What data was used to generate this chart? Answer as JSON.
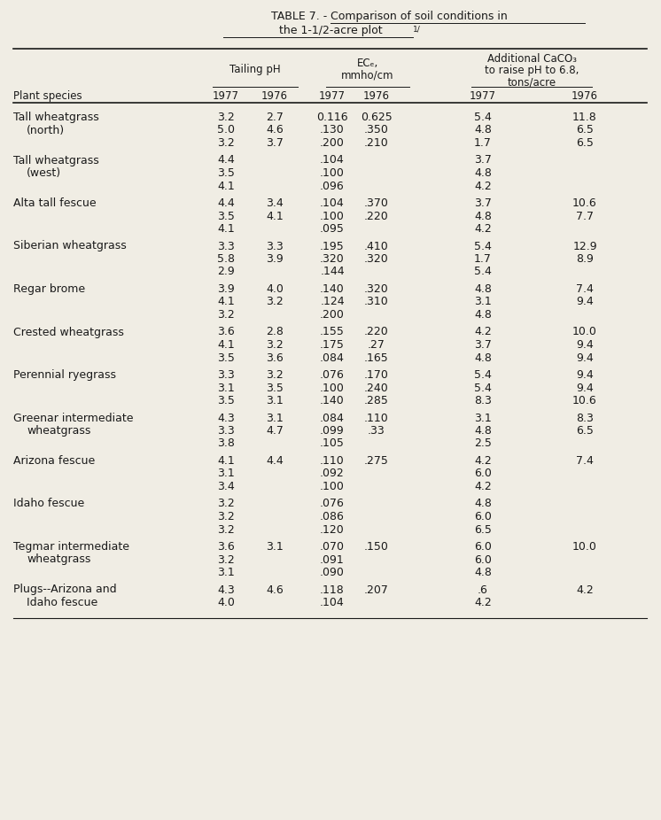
{
  "title_line1_prefix": "TABLE 7. - ",
  "title_line1_underlined": "Comparison of soil conditions in",
  "title_line2_underlined": "the 1-1/2-acre plot",
  "title_superscript": "1/",
  "bg_color": "#f0ede4",
  "text_color": "#1a1a1a",
  "font_size": 9.0,
  "col_group_labels": [
    "Tailing pH",
    "EC_e,\nmmho/cm",
    "Additional CaCO3\nto raise pH to 6.8,\ntons/acre"
  ],
  "col_years": [
    "1977",
    "1976",
    "1977",
    "1976",
    "1977",
    "1976"
  ],
  "entries": [
    {
      "label1": "Tall wheatgrass",
      "label2": "(north)",
      "rows": [
        [
          "3.2",
          "2.7",
          "0.116",
          "0.625",
          "5.4",
          "11.8"
        ],
        [
          "5.0",
          "4.6",
          ".130",
          ".350",
          "4.8",
          "6.5"
        ],
        [
          "3.2",
          "3.7",
          ".200",
          ".210",
          "1.7",
          "6.5"
        ]
      ]
    },
    {
      "label1": "Tall wheatgrass",
      "label2": "(west)",
      "rows": [
        [
          "4.4",
          "",
          ".104",
          "",
          "3.7",
          ""
        ],
        [
          "3.5",
          "",
          ".100",
          "",
          "4.8",
          ""
        ],
        [
          "4.1",
          "",
          ".096",
          "",
          "4.2",
          ""
        ]
      ]
    },
    {
      "label1": "Alta tall fescue",
      "label2": null,
      "rows": [
        [
          "4.4",
          "3.4",
          ".104",
          ".370",
          "3.7",
          "10.6"
        ],
        [
          "3.5",
          "4.1",
          ".100",
          ".220",
          "4.8",
          "7.7"
        ],
        [
          "4.1",
          "",
          ".095",
          "",
          "4.2",
          ""
        ]
      ]
    },
    {
      "label1": "Siberian wheatgrass",
      "label2": null,
      "rows": [
        [
          "3.3",
          "3.3",
          ".195",
          ".410",
          "5.4",
          "12.9"
        ],
        [
          "5.8",
          "3.9",
          ".320",
          ".320",
          "1.7",
          "8.9"
        ],
        [
          "2.9",
          "",
          ".144",
          "",
          "5.4",
          ""
        ]
      ]
    },
    {
      "label1": "Regar brome",
      "label2": null,
      "rows": [
        [
          "3.9",
          "4.0",
          ".140",
          ".320",
          "4.8",
          "7.4"
        ],
        [
          "4.1",
          "3.2",
          ".124",
          ".310",
          "3.1",
          "9.4"
        ],
        [
          "3.2",
          "",
          ".200",
          "",
          "4.8",
          ""
        ]
      ]
    },
    {
      "label1": "Crested wheatgrass",
      "label2": null,
      "rows": [
        [
          "3.6",
          "2.8",
          ".155",
          ".220",
          "4.2",
          "10.0"
        ],
        [
          "4.1",
          "3.2",
          ".175",
          ".27",
          "3.7",
          "9.4"
        ],
        [
          "3.5",
          "3.6",
          ".084",
          ".165",
          "4.8",
          "9.4"
        ]
      ]
    },
    {
      "label1": "Perennial ryegrass",
      "label2": null,
      "rows": [
        [
          "3.3",
          "3.2",
          ".076",
          ".170",
          "5.4",
          "9.4"
        ],
        [
          "3.1",
          "3.5",
          ".100",
          ".240",
          "5.4",
          "9.4"
        ],
        [
          "3.5",
          "3.1",
          ".140",
          ".285",
          "8.3",
          "10.6"
        ]
      ]
    },
    {
      "label1": "Greenar intermediate",
      "label2": "  wheatgrass",
      "rows": [
        [
          "4.3",
          "3.1",
          ".084",
          ".110",
          "3.1",
          "8.3"
        ],
        [
          "3.3",
          "4.7",
          ".099",
          ".33",
          "4.8",
          "6.5"
        ],
        [
          "3.8",
          "",
          ".105",
          "",
          "2.5",
          ""
        ]
      ]
    },
    {
      "label1": "Arizona fescue",
      "label2": null,
      "rows": [
        [
          "4.1",
          "4.4",
          ".110",
          ".275",
          "4.2",
          "7.4"
        ],
        [
          "3.1",
          "",
          ".092",
          "",
          "6.0",
          ""
        ],
        [
          "3.4",
          "",
          ".100",
          "",
          "4.2",
          ""
        ]
      ]
    },
    {
      "label1": "Idaho fescue",
      "label2": null,
      "rows": [
        [
          "3.2",
          "",
          ".076",
          "",
          "4.8",
          ""
        ],
        [
          "3.2",
          "",
          ".086",
          "",
          "6.0",
          ""
        ],
        [
          "3.2",
          "",
          ".120",
          "",
          "6.5",
          ""
        ]
      ]
    },
    {
      "label1": "Tegmar intermediate",
      "label2": "  wheatgrass",
      "rows": [
        [
          "3.6",
          "3.1",
          ".070",
          ".150",
          "6.0",
          "10.0"
        ],
        [
          "3.2",
          "",
          ".091",
          "",
          "6.0",
          ""
        ],
        [
          "3.1",
          "",
          ".090",
          "",
          "4.8",
          ""
        ]
      ]
    },
    {
      "label1": "Plugs--Arizona and",
      "label2": "  Idaho fescue",
      "rows": [
        [
          "4.3",
          "4.6",
          ".118",
          ".207",
          ".6",
          "4.2"
        ],
        [
          "4.0",
          "",
          ".104",
          "",
          "4.2",
          ""
        ]
      ]
    }
  ]
}
